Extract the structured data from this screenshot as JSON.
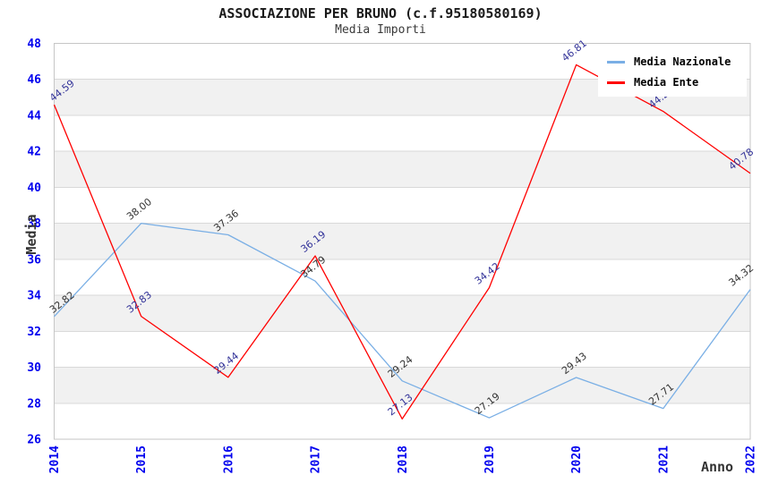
{
  "title": "ASSOCIAZIONE PER BRUNO (c.f.95180580169)",
  "subtitle": "Media Importi",
  "chart_data": {
    "type": "line",
    "categories": [
      "2014",
      "2015",
      "2016",
      "2017",
      "2018",
      "2019",
      "2020",
      "2021",
      "2022"
    ],
    "series": [
      {
        "name": "Media Nazionale",
        "color": "#7AAFE5",
        "label_color": "#333333",
        "values": [
          32.82,
          38.0,
          37.36,
          34.79,
          29.24,
          27.19,
          29.43,
          27.71,
          34.32
        ]
      },
      {
        "name": "Media Ente",
        "color": "#FF0000",
        "label_color": "#333399",
        "values": [
          44.59,
          32.83,
          29.44,
          36.19,
          27.13,
          34.42,
          46.81,
          44.22,
          40.78
        ]
      }
    ],
    "xlabel": "Anno",
    "ylabel": "Media",
    "ylim": [
      26,
      48
    ],
    "ytick_step": 2,
    "grid": true,
    "legend_position": "top-right",
    "colors": {
      "tick_text": "#0000EE",
      "band_fill": "#F1F1F1",
      "grid_line": "#D9D9D9",
      "plot_border": "#C6C6C6"
    }
  }
}
